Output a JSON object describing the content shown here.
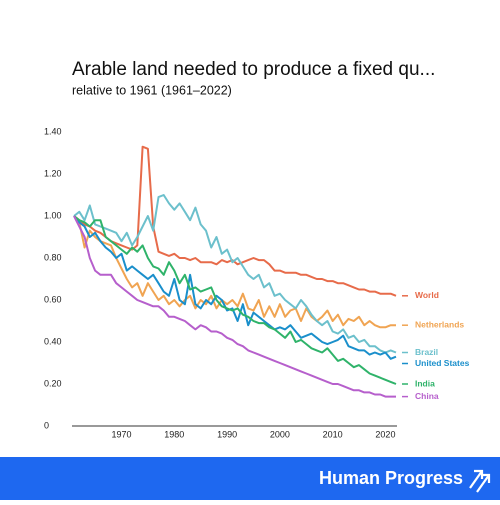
{
  "chart_data": {
    "type": "line",
    "title": "Arable land needed to produce a fixed qu...",
    "subtitle": "relative to 1961 (1961–2022)",
    "x": [
      1961,
      1962,
      1963,
      1964,
      1965,
      1966,
      1967,
      1968,
      1969,
      1970,
      1971,
      1972,
      1973,
      1974,
      1975,
      1976,
      1977,
      1978,
      1979,
      1980,
      1981,
      1982,
      1983,
      1984,
      1985,
      1986,
      1987,
      1988,
      1989,
      1990,
      1991,
      1992,
      1993,
      1994,
      1995,
      1996,
      1997,
      1998,
      1999,
      2000,
      2001,
      2002,
      2003,
      2004,
      2005,
      2006,
      2007,
      2008,
      2009,
      2010,
      2011,
      2012,
      2013,
      2014,
      2015,
      2016,
      2017,
      2018,
      2019,
      2020,
      2021,
      2022
    ],
    "xlim": [
      1961,
      2022
    ],
    "xticks": [
      1970,
      1980,
      1990,
      2000,
      2010,
      2020
    ],
    "ylim": [
      0,
      1.4
    ],
    "yticks": [
      0,
      {
        "value": 0.2,
        "label": "0.20"
      },
      {
        "value": 0.4,
        "label": "0.40"
      },
      {
        "value": 0.6,
        "label": "0.60"
      },
      {
        "value": 0.8,
        "label": "0.80"
      },
      {
        "value": 1.0,
        "label": "1.00"
      },
      {
        "value": 1.2,
        "label": "1.20"
      },
      {
        "value": 1.4,
        "label": "1.40"
      }
    ],
    "grid": false,
    "series": [
      {
        "name": "World",
        "color": "#e76b4a",
        "values": [
          1.0,
          0.98,
          0.96,
          0.95,
          0.93,
          0.92,
          0.9,
          0.88,
          0.87,
          0.86,
          0.85,
          0.84,
          0.86,
          1.33,
          1.32,
          0.95,
          0.83,
          0.82,
          0.81,
          0.82,
          0.8,
          0.8,
          0.79,
          0.8,
          0.78,
          0.78,
          0.78,
          0.77,
          0.79,
          0.78,
          0.79,
          0.77,
          0.78,
          0.79,
          0.8,
          0.79,
          0.79,
          0.77,
          0.74,
          0.74,
          0.73,
          0.73,
          0.73,
          0.72,
          0.72,
          0.71,
          0.7,
          0.7,
          0.69,
          0.69,
          0.68,
          0.68,
          0.67,
          0.66,
          0.65,
          0.65,
          0.64,
          0.64,
          0.63,
          0.63,
          0.63,
          0.62
        ]
      },
      {
        "name": "Netherlands",
        "color": "#f0a452",
        "values": [
          1.0,
          0.97,
          0.85,
          0.93,
          0.9,
          0.88,
          0.87,
          0.86,
          0.8,
          0.75,
          0.7,
          0.66,
          0.68,
          0.62,
          0.68,
          0.64,
          0.6,
          0.62,
          0.58,
          0.6,
          0.57,
          0.6,
          0.62,
          0.56,
          0.6,
          0.58,
          0.62,
          0.56,
          0.6,
          0.58,
          0.6,
          0.57,
          0.63,
          0.56,
          0.55,
          0.6,
          0.52,
          0.57,
          0.52,
          0.58,
          0.52,
          0.55,
          0.56,
          0.5,
          0.56,
          0.52,
          0.5,
          0.52,
          0.55,
          0.5,
          0.53,
          0.48,
          0.51,
          0.5,
          0.52,
          0.48,
          0.5,
          0.48,
          0.47,
          0.47,
          0.48,
          0.48
        ]
      },
      {
        "name": "Brazil",
        "color": "#6cc0cc",
        "values": [
          1.0,
          1.02,
          0.98,
          1.05,
          0.96,
          0.95,
          0.94,
          0.93,
          0.92,
          0.88,
          0.92,
          0.86,
          0.9,
          0.95,
          1.0,
          0.93,
          1.09,
          1.1,
          1.06,
          1.03,
          1.06,
          1.02,
          0.98,
          1.04,
          0.96,
          0.93,
          0.85,
          0.9,
          0.82,
          0.84,
          0.78,
          0.8,
          0.76,
          0.72,
          0.7,
          0.72,
          0.66,
          0.68,
          0.62,
          0.63,
          0.6,
          0.58,
          0.56,
          0.6,
          0.57,
          0.53,
          0.5,
          0.48,
          0.5,
          0.45,
          0.44,
          0.46,
          0.42,
          0.43,
          0.4,
          0.41,
          0.38,
          0.38,
          0.36,
          0.35,
          0.36,
          0.35
        ]
      },
      {
        "name": "United States",
        "color": "#1a8fcb",
        "values": [
          1.0,
          0.97,
          0.95,
          0.9,
          0.92,
          0.88,
          0.85,
          0.83,
          0.8,
          0.82,
          0.74,
          0.76,
          0.74,
          0.72,
          0.7,
          0.72,
          0.68,
          0.64,
          0.62,
          0.7,
          0.6,
          0.58,
          0.72,
          0.58,
          0.56,
          0.6,
          0.58,
          0.62,
          0.6,
          0.55,
          0.56,
          0.5,
          0.58,
          0.48,
          0.54,
          0.52,
          0.5,
          0.48,
          0.46,
          0.47,
          0.46,
          0.48,
          0.45,
          0.42,
          0.43,
          0.44,
          0.42,
          0.4,
          0.39,
          0.4,
          0.41,
          0.43,
          0.38,
          0.37,
          0.36,
          0.36,
          0.34,
          0.35,
          0.34,
          0.35,
          0.32,
          0.33
        ]
      },
      {
        "name": "India",
        "color": "#2fb36a",
        "values": [
          1.0,
          0.98,
          0.97,
          0.95,
          0.98,
          0.98,
          0.9,
          0.88,
          0.86,
          0.84,
          0.82,
          0.85,
          0.83,
          0.86,
          0.8,
          0.76,
          0.75,
          0.72,
          0.78,
          0.74,
          0.68,
          0.72,
          0.65,
          0.66,
          0.64,
          0.65,
          0.66,
          0.6,
          0.57,
          0.56,
          0.55,
          0.56,
          0.53,
          0.52,
          0.5,
          0.49,
          0.49,
          0.47,
          0.46,
          0.44,
          0.42,
          0.45,
          0.4,
          0.41,
          0.39,
          0.37,
          0.36,
          0.35,
          0.37,
          0.34,
          0.31,
          0.32,
          0.3,
          0.28,
          0.29,
          0.27,
          0.25,
          0.24,
          0.23,
          0.22,
          0.21,
          0.2
        ]
      },
      {
        "name": "China",
        "color": "#b65fcc",
        "values": [
          1.0,
          0.95,
          0.9,
          0.8,
          0.74,
          0.72,
          0.72,
          0.72,
          0.68,
          0.66,
          0.64,
          0.62,
          0.6,
          0.59,
          0.58,
          0.57,
          0.57,
          0.55,
          0.52,
          0.52,
          0.51,
          0.5,
          0.48,
          0.46,
          0.48,
          0.47,
          0.45,
          0.45,
          0.44,
          0.42,
          0.41,
          0.39,
          0.38,
          0.36,
          0.35,
          0.34,
          0.33,
          0.32,
          0.31,
          0.3,
          0.29,
          0.28,
          0.27,
          0.26,
          0.25,
          0.24,
          0.23,
          0.22,
          0.21,
          0.2,
          0.2,
          0.19,
          0.18,
          0.17,
          0.17,
          0.16,
          0.16,
          0.15,
          0.15,
          0.14,
          0.14,
          0.14
        ]
      }
    ]
  },
  "footer": {
    "brand": "Human Progress"
  }
}
